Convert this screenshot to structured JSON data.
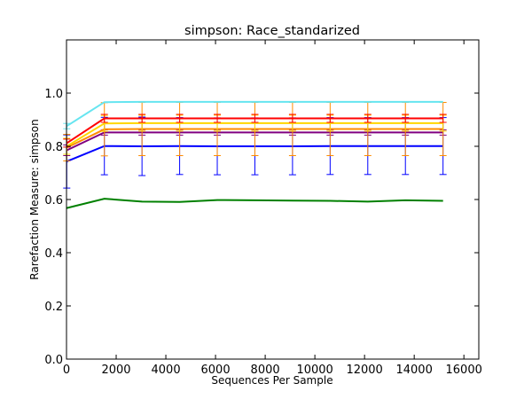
{
  "chart_data": {
    "type": "line",
    "title": "simpson: Race_standarized",
    "xlabel": "Sequences Per Sample",
    "ylabel": "Rarefaction Measure: simpson",
    "xlim": [
      0,
      16600
    ],
    "ylim": [
      0.0,
      1.2
    ],
    "grid": false,
    "x_ticks": [
      0,
      2000,
      4000,
      6000,
      8000,
      10000,
      12000,
      14000,
      16000
    ],
    "y_ticks": [
      0.0,
      0.2,
      0.4,
      0.6,
      0.8,
      1.0
    ],
    "x_tick_labels": [
      "0",
      "2000",
      "4000",
      "6000",
      "8000",
      "10000",
      "12000",
      "14000",
      "16000"
    ],
    "y_tick_labels": [
      "0.0",
      "0.2",
      "0.4",
      "0.6",
      "0.8",
      "1.0"
    ],
    "x": [
      10,
      1525,
      3040,
      4555,
      6070,
      7585,
      9100,
      10615,
      12130,
      13645,
      15160
    ],
    "series": [
      {
        "color": "#008000",
        "values": [
          0.568,
          0.603,
          0.592,
          0.591,
          0.598,
          0.597,
          0.596,
          0.595,
          0.592,
          0.597,
          0.595
        ],
        "err": [
          0,
          0,
          0,
          0,
          0,
          0,
          0,
          0,
          0,
          0,
          0
        ]
      },
      {
        "color": "#0000ff",
        "values": [
          0.743,
          0.801,
          0.8,
          0.801,
          0.8,
          0.8,
          0.8,
          0.801,
          0.801,
          0.801,
          0.801
        ],
        "err": [
          0.1,
          0.108,
          0.11,
          0.107,
          0.107,
          0.107,
          0.107,
          0.107,
          0.107,
          0.107,
          0.107
        ]
      },
      {
        "color": "#800080",
        "values": [
          0.785,
          0.852,
          0.852,
          0.852,
          0.852,
          0.852,
          0.852,
          0.852,
          0.852,
          0.852,
          0.852
        ],
        "err": [
          0.02,
          0.01,
          0.01,
          0.01,
          0.01,
          0.01,
          0.01,
          0.01,
          0.01,
          0.01,
          0.01
        ]
      },
      {
        "color": "#ff8c00",
        "values": [
          0.795,
          0.864,
          0.865,
          0.865,
          0.865,
          0.865,
          0.865,
          0.865,
          0.865,
          0.865,
          0.865
        ],
        "err": [
          0.05,
          0.1,
          0.1,
          0.1,
          0.1,
          0.1,
          0.1,
          0.1,
          0.1,
          0.1,
          0.1
        ]
      },
      {
        "color": "#ffd700",
        "values": [
          0.8,
          0.886,
          0.887,
          0.887,
          0.887,
          0.887,
          0.887,
          0.887,
          0.887,
          0.887,
          0.887
        ],
        "err": [
          0.03,
          0.03,
          0.03,
          0.03,
          0.03,
          0.03,
          0.03,
          0.03,
          0.03,
          0.03,
          0.03
        ]
      },
      {
        "color": "#ff0000",
        "values": [
          0.812,
          0.905,
          0.905,
          0.905,
          0.905,
          0.905,
          0.905,
          0.905,
          0.905,
          0.905,
          0.905
        ],
        "err": [
          0.015,
          0.015,
          0.015,
          0.015,
          0.015,
          0.015,
          0.015,
          0.015,
          0.015,
          0.015,
          0.015
        ]
      },
      {
        "color": "#66e5f0",
        "values": [
          0.876,
          0.966,
          0.967,
          0.967,
          0.967,
          0.967,
          0.967,
          0.967,
          0.967,
          0.967,
          0.967
        ],
        "err": [
          0.01,
          0.0,
          0.0,
          0.0,
          0.0,
          0.0,
          0.0,
          0.0,
          0.0,
          0.0,
          0.0
        ]
      }
    ]
  }
}
